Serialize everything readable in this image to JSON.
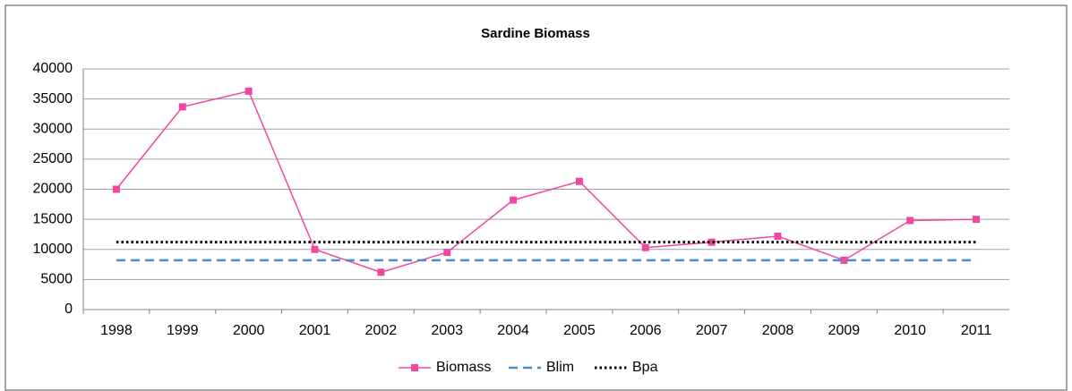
{
  "chart_data": {
    "type": "line",
    "title": "Sardine Biomass",
    "categories": [
      "1998",
      "1999",
      "2000",
      "2001",
      "2002",
      "2003",
      "2004",
      "2005",
      "2006",
      "2007",
      "2008",
      "2009",
      "2010",
      "2011"
    ],
    "series": [
      {
        "name": "Biomass",
        "color": "#f0489f",
        "style": "solid",
        "marker": "square",
        "values": [
          20000,
          33700,
          36300,
          10000,
          6200,
          9500,
          18200,
          21300,
          10300,
          11200,
          12200,
          8200,
          14800,
          15000
        ]
      },
      {
        "name": "Blim",
        "color": "#4a8ad0",
        "style": "dashed",
        "values": [
          8200,
          8200,
          8200,
          8200,
          8200,
          8200,
          8200,
          8200,
          8200,
          8200,
          8200,
          8200,
          8200,
          8200
        ]
      },
      {
        "name": "Bpa",
        "color": "#000000",
        "style": "dotted",
        "values": [
          11200,
          11200,
          11200,
          11200,
          11200,
          11200,
          11200,
          11200,
          11200,
          11200,
          11200,
          11200,
          11200,
          11200
        ]
      }
    ],
    "ylim": [
      0,
      40000
    ],
    "yticks": [
      0,
      5000,
      10000,
      15000,
      20000,
      25000,
      30000,
      35000,
      40000
    ],
    "grid": true,
    "legend": "bottom"
  }
}
